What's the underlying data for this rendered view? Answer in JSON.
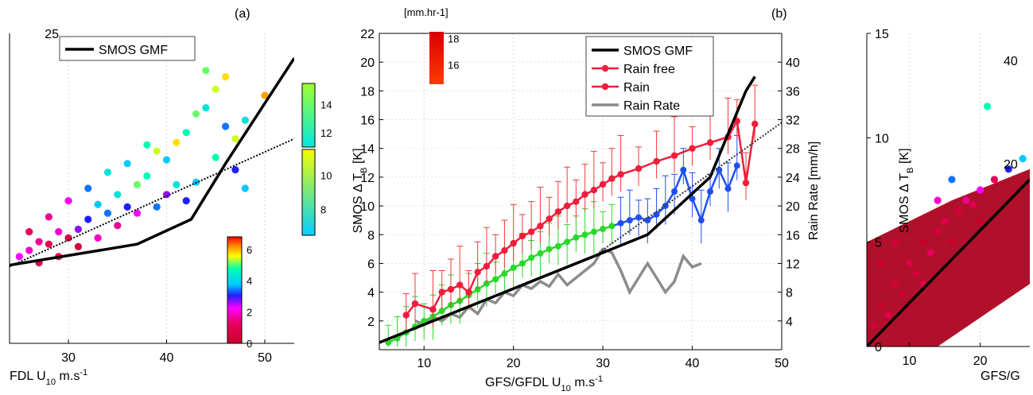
{
  "figure": {
    "panel_a_label": "(a)",
    "panel_b_label": "(b)"
  },
  "chart_data": [
    {
      "id": "panel-a",
      "type": "scatter",
      "title": "(a)",
      "xlabel_prefix": "FDL U",
      "xlabel_sub": "10",
      "xlabel_suffix": " m.s",
      "xlabel_sup": "-1",
      "xlim": [
        24,
        53
      ],
      "ylim": [
        0,
        25
      ],
      "xticks": [
        30,
        40,
        50
      ],
      "yticks": [
        25
      ],
      "legend": {
        "position": "top-left",
        "entries": [
          "SMOS GMF"
        ]
      },
      "gmf_line": {
        "x": [
          24,
          37,
          42.5,
          46,
          53
        ],
        "y": [
          6.3,
          8.0,
          10.0,
          14.5,
          23.0
        ]
      },
      "dotted_line": {
        "x": [
          24,
          53
        ],
        "y": [
          6.2,
          16.5
        ]
      },
      "colorbar": {
        "label": "[mm.hr-1]",
        "ticks": [
          0,
          2,
          4,
          6,
          8,
          10,
          12,
          14,
          16,
          18
        ],
        "range": [
          0,
          18
        ]
      },
      "scatter_points": [
        [
          25,
          7,
          6
        ],
        [
          26,
          7.5,
          5
        ],
        [
          27,
          8.2,
          4
        ],
        [
          28,
          8.0,
          3
        ],
        [
          29,
          9.0,
          5
        ],
        [
          30,
          8.5,
          2
        ],
        [
          31,
          9.2,
          7
        ],
        [
          32,
          10.0,
          8
        ],
        [
          33,
          11.2,
          10
        ],
        [
          34,
          10.5,
          9
        ],
        [
          35,
          12.0,
          11
        ],
        [
          36,
          11.0,
          8
        ],
        [
          37,
          12.8,
          13
        ],
        [
          38,
          13.5,
          12
        ],
        [
          39,
          15.5,
          14
        ],
        [
          40,
          14.8,
          10
        ],
        [
          41,
          16.2,
          15
        ],
        [
          42,
          17.0,
          12
        ],
        [
          43,
          18.5,
          13
        ],
        [
          44,
          19.0,
          11
        ],
        [
          45,
          20.5,
          14
        ],
        [
          46,
          17.5,
          9
        ],
        [
          47,
          14.0,
          8
        ],
        [
          48,
          12.5,
          10
        ],
        [
          26,
          9,
          3
        ],
        [
          28,
          10.2,
          4
        ],
        [
          30,
          11.5,
          6
        ],
        [
          32,
          12.5,
          9
        ],
        [
          34,
          13.8,
          11
        ],
        [
          36,
          14.5,
          10
        ],
        [
          38,
          16.0,
          12
        ],
        [
          40,
          12.0,
          7
        ],
        [
          42,
          11.5,
          8
        ],
        [
          44,
          22.0,
          13
        ],
        [
          46,
          21.5,
          15
        ],
        [
          48,
          18.0,
          11
        ],
        [
          27,
          6.5,
          2
        ],
        [
          29,
          7.0,
          3
        ],
        [
          31,
          7.8,
          1
        ],
        [
          33,
          8.5,
          5
        ],
        [
          35,
          9.5,
          4
        ],
        [
          37,
          10.5,
          6
        ],
        [
          39,
          11.0,
          9
        ],
        [
          41,
          12.8,
          11
        ],
        [
          43,
          13.0,
          10
        ],
        [
          45,
          15.0,
          12
        ],
        [
          47,
          16.5,
          14
        ],
        [
          50,
          20.0,
          16
        ]
      ]
    },
    {
      "id": "panel-b",
      "type": "line",
      "title": "(b)",
      "xlabel_prefix": "GFS/GFDL U",
      "xlabel_sub": "10",
      "xlabel_suffix": " m.s",
      "xlabel_sup": "-1",
      "ylabel": "SMOS Δ T",
      "ylabel_sub": "B",
      "ylabel_suffix": " [K]",
      "y2label": "Rain Rate [mm/h]",
      "xlim": [
        5,
        50
      ],
      "ylim": [
        0,
        22
      ],
      "y2lim": [
        0,
        44
      ],
      "xticks": [
        10,
        20,
        30,
        40,
        50
      ],
      "yticks": [
        2,
        4,
        6,
        8,
        10,
        12,
        14,
        16,
        18,
        20,
        22
      ],
      "y2ticks": [
        4,
        8,
        12,
        16,
        20,
        24,
        28,
        32,
        36,
        40
      ],
      "legend": {
        "position": "top-left",
        "entries": [
          "SMOS GMF",
          "Rain free",
          "Rain",
          "Rain Rate"
        ]
      },
      "series": [
        {
          "name": "SMOS GMF",
          "x": [
            5,
            35,
            42,
            46,
            47
          ],
          "y": [
            0.5,
            8.0,
            12.0,
            18.0,
            19.0
          ]
        },
        {
          "name": "Rain free",
          "x": [
            6,
            7,
            8,
            9,
            10,
            11,
            12,
            13,
            14,
            15,
            16,
            17,
            18,
            19,
            20,
            21,
            22,
            23,
            24,
            25,
            26,
            27,
            28,
            29,
            30,
            31,
            32,
            33,
            34,
            35,
            36,
            37,
            38,
            39,
            40,
            41,
            42,
            43,
            44,
            45
          ],
          "y": [
            0.5,
            0.8,
            1.2,
            1.6,
            2.0,
            2.3,
            2.7,
            3.1,
            3.4,
            3.8,
            4.2,
            4.6,
            4.9,
            5.3,
            5.7,
            6.0,
            6.4,
            6.7,
            7.0,
            7.2,
            7.5,
            7.8,
            8.0,
            8.2,
            8.4,
            8.6,
            8.8,
            9.0,
            9.2,
            9.0,
            9.4,
            10.0,
            11.0,
            12.5,
            10.5,
            9.0,
            11.0,
            12.5,
            11.2,
            12.8
          ]
        },
        {
          "name": "Rain",
          "x": [
            8,
            9,
            11,
            12,
            13,
            14,
            15,
            16,
            17,
            18,
            19,
            20,
            21,
            22,
            23,
            24,
            25,
            26,
            27,
            28,
            29,
            30,
            31,
            32,
            34,
            36,
            38,
            40,
            42,
            44,
            45,
            46,
            47
          ],
          "y": [
            2.4,
            3.2,
            2.8,
            4.0,
            4.2,
            4.5,
            4.0,
            5.4,
            5.8,
            6.5,
            6.9,
            7.4,
            7.9,
            8.2,
            8.6,
            9.1,
            9.6,
            10.0,
            10.3,
            10.8,
            11.1,
            11.5,
            11.9,
            12.2,
            12.6,
            13.1,
            13.5,
            14.0,
            14.4,
            14.8,
            15.9,
            11.6,
            15.7
          ]
        },
        {
          "name": "Rain Rate",
          "axis": "y2",
          "x": [
            9,
            10,
            11,
            12,
            13,
            14,
            15,
            16,
            17,
            18,
            19,
            20,
            21,
            22,
            23,
            24,
            25,
            26,
            27,
            28,
            29,
            30,
            31,
            32,
            33,
            34,
            35,
            36,
            37,
            38,
            39,
            40,
            41
          ],
          "y": [
            4.0,
            3.5,
            4.5,
            4.0,
            5.0,
            4.5,
            6.0,
            5.0,
            7.0,
            6.5,
            8.0,
            7.5,
            9.0,
            8.5,
            9.5,
            8.8,
            10.5,
            9.0,
            10.0,
            11.0,
            12.0,
            14.0,
            13.5,
            11.0,
            8.0,
            10.0,
            12.0,
            10.0,
            8.0,
            9.5,
            13.0,
            11.5,
            12.0
          ]
        }
      ]
    },
    {
      "id": "panel-c",
      "type": "scatter",
      "xlabel": "GFS/G",
      "ylabel": "SMOS Δ T",
      "ylabel_sub": "B",
      "ylabel_suffix": " [K]",
      "xlim": [
        4,
        27
      ],
      "ylim": [
        0,
        15
      ],
      "xticks": [
        10,
        20
      ],
      "yticks": [
        0,
        5,
        10,
        15
      ],
      "gmf_line": {
        "x": [
          4,
          27
        ],
        "y": [
          0,
          8
        ]
      },
      "right_axis_ticks": [
        20,
        40
      ],
      "scatter_points": [
        [
          5,
          1,
          1
        ],
        [
          6,
          2,
          0
        ],
        [
          7,
          1.5,
          2
        ],
        [
          8,
          3,
          1
        ],
        [
          9,
          2.5,
          0
        ],
        [
          10,
          4,
          2
        ],
        [
          11,
          3.5,
          1
        ],
        [
          12,
          5,
          0
        ],
        [
          13,
          4.5,
          3
        ],
        [
          14,
          5.5,
          1
        ],
        [
          15,
          6,
          2
        ],
        [
          16,
          5,
          0
        ],
        [
          17,
          6.5,
          1
        ],
        [
          18,
          7,
          4
        ],
        [
          19,
          6.8,
          2
        ],
        [
          20,
          7.5,
          6
        ],
        [
          21,
          11.5,
          12
        ],
        [
          22,
          8,
          3
        ],
        [
          6,
          4,
          0
        ],
        [
          8,
          5,
          1
        ],
        [
          10,
          2,
          0
        ],
        [
          12,
          3,
          2
        ],
        [
          14,
          7,
          5
        ],
        [
          16,
          8,
          9
        ],
        [
          18,
          5,
          1
        ],
        [
          20,
          6,
          0
        ],
        [
          24,
          8.5,
          8
        ],
        [
          26,
          9,
          10
        ]
      ]
    }
  ]
}
